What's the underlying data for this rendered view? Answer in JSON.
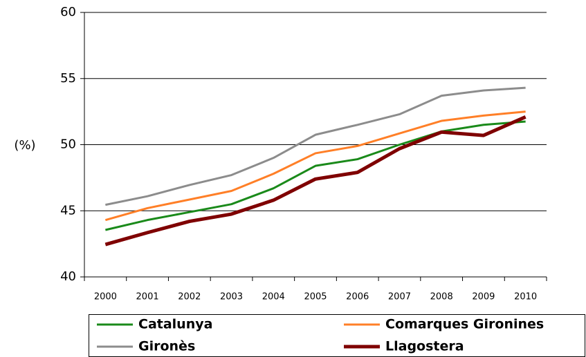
{
  "chart_data": {
    "type": "line",
    "y_label": "(%)",
    "categories": [
      "2000",
      "2001",
      "2002",
      "2003",
      "2004",
      "2005",
      "2006",
      "2007",
      "2008",
      "2009",
      "2010"
    ],
    "series": [
      {
        "name": "Catalunya",
        "color": "#1a8a1a",
        "values": [
          43.55,
          44.3,
          44.9,
          45.5,
          46.7,
          48.4,
          48.9,
          50.0,
          51.0,
          51.5,
          51.75
        ]
      },
      {
        "name": "Comarques Gironines",
        "color": "#ff7f27",
        "values": [
          44.3,
          45.2,
          45.85,
          46.5,
          47.8,
          49.35,
          49.9,
          50.85,
          51.8,
          52.2,
          52.5
        ]
      },
      {
        "name": "Gironès",
        "color": "#8c8c8c",
        "values": [
          45.45,
          46.1,
          46.95,
          47.7,
          49.0,
          50.75,
          51.5,
          52.3,
          53.7,
          54.1,
          54.3
        ]
      },
      {
        "name": "Llagostera",
        "color": "#7f0000",
        "values": [
          42.45,
          43.35,
          44.2,
          44.75,
          45.8,
          47.4,
          47.9,
          49.7,
          50.95,
          50.7,
          52.1
        ]
      }
    ],
    "ylim": [
      40,
      60
    ],
    "yticks": [
      40,
      45,
      50,
      55,
      60
    ],
    "grid": true,
    "legend": "bottom"
  }
}
